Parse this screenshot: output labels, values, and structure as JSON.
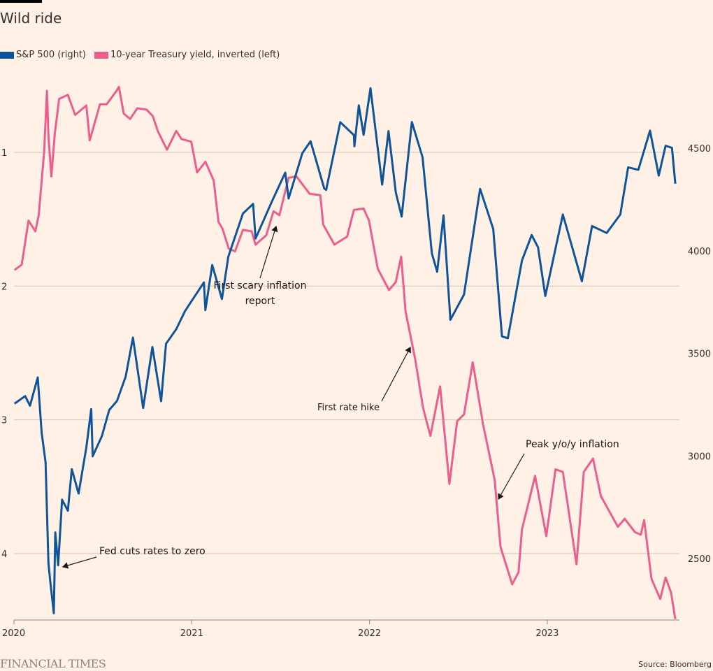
{
  "chart_data": {
    "type": "line",
    "title": "Wild ride",
    "legend_position": "top-left",
    "xlim": [
      "2020-01-01",
      "2023-10-15"
    ],
    "x_ticks": [
      "2020",
      "2021",
      "2022",
      "2023"
    ],
    "left_axis": {
      "label": "10-year Treasury yield, inverted",
      "inverted": true,
      "ylim": [
        0.38,
        4.5
      ],
      "ticks": [
        "1",
        "2",
        "3",
        "4"
      ],
      "grid": true
    },
    "right_axis": {
      "label": "S&P 500",
      "ylim": [
        2200,
        4880
      ],
      "ticks": [
        "4500",
        "4000",
        "3500",
        "3000",
        "2500"
      ]
    },
    "series": [
      {
        "name": "S&P 500 (right)",
        "axis": "right",
        "color": "#0f5499",
        "points": [
          [
            "2020-01-02",
            3258
          ],
          [
            "2020-01-24",
            3295
          ],
          [
            "2020-02-03",
            3248
          ],
          [
            "2020-02-19",
            3386
          ],
          [
            "2020-02-27",
            3116
          ],
          [
            "2020-03-06",
            2972
          ],
          [
            "2020-03-12",
            2480
          ],
          [
            "2020-03-16",
            2386
          ],
          [
            "2020-03-23",
            2237
          ],
          [
            "2020-03-26",
            2630
          ],
          [
            "2020-04-01",
            2470
          ],
          [
            "2020-04-09",
            2790
          ],
          [
            "2020-04-21",
            2736
          ],
          [
            "2020-04-29",
            2939
          ],
          [
            "2020-05-13",
            2820
          ],
          [
            "2020-05-29",
            3044
          ],
          [
            "2020-06-08",
            3232
          ],
          [
            "2020-06-11",
            3002
          ],
          [
            "2020-06-30",
            3100
          ],
          [
            "2020-07-15",
            3227
          ],
          [
            "2020-07-31",
            3271
          ],
          [
            "2020-08-18",
            3390
          ],
          [
            "2020-09-02",
            3580
          ],
          [
            "2020-09-23",
            3237
          ],
          [
            "2020-10-12",
            3534
          ],
          [
            "2020-10-30",
            3270
          ],
          [
            "2020-11-09",
            3550
          ],
          [
            "2020-11-30",
            3621
          ],
          [
            "2020-12-18",
            3709
          ],
          [
            "2020-12-31",
            3756
          ],
          [
            "2021-01-26",
            3849
          ],
          [
            "2021-01-29",
            3714
          ],
          [
            "2021-02-12",
            3934
          ],
          [
            "2021-03-04",
            3768
          ],
          [
            "2021-03-17",
            3974
          ],
          [
            "2021-04-16",
            4185
          ],
          [
            "2021-05-07",
            4232
          ],
          [
            "2021-05-12",
            4063
          ],
          [
            "2021-06-15",
            4246
          ],
          [
            "2021-07-12",
            4384
          ],
          [
            "2021-07-19",
            4258
          ],
          [
            "2021-08-16",
            4479
          ],
          [
            "2021-09-02",
            4537
          ],
          [
            "2021-09-30",
            4307
          ],
          [
            "2021-10-04",
            4300
          ],
          [
            "2021-11-02",
            4630
          ],
          [
            "2021-11-30",
            4567
          ],
          [
            "2021-12-01",
            4513
          ],
          [
            "2021-12-10",
            4712
          ],
          [
            "2021-12-20",
            4568
          ],
          [
            "2022-01-03",
            4796
          ],
          [
            "2022-01-27",
            4326
          ],
          [
            "2022-02-09",
            4587
          ],
          [
            "2022-02-24",
            4288
          ],
          [
            "2022-03-08",
            4170
          ],
          [
            "2022-03-29",
            4631
          ],
          [
            "2022-04-20",
            4459
          ],
          [
            "2022-05-09",
            3991
          ],
          [
            "2022-05-20",
            3901
          ],
          [
            "2022-06-02",
            4176
          ],
          [
            "2022-06-16",
            3667
          ],
          [
            "2022-07-14",
            3790
          ],
          [
            "2022-08-16",
            4305
          ],
          [
            "2022-09-12",
            4110
          ],
          [
            "2022-09-30",
            3586
          ],
          [
            "2022-10-12",
            3577
          ],
          [
            "2022-11-10",
            3956
          ],
          [
            "2022-11-30",
            4080
          ],
          [
            "2022-12-13",
            4020
          ],
          [
            "2022-12-28",
            3783
          ],
          [
            "2023-02-02",
            4180
          ],
          [
            "2023-03-13",
            3855
          ],
          [
            "2023-04-03",
            4124
          ],
          [
            "2023-05-03",
            4090
          ],
          [
            "2023-05-31",
            4180
          ],
          [
            "2023-06-16",
            4410
          ],
          [
            "2023-07-07",
            4398
          ],
          [
            "2023-07-31",
            4589
          ],
          [
            "2023-08-18",
            4370
          ],
          [
            "2023-09-01",
            4515
          ],
          [
            "2023-09-14",
            4505
          ],
          [
            "2023-09-21",
            4330
          ]
        ]
      },
      {
        "name": "10-year Treasury yield, inverted (left)",
        "axis": "left",
        "color": "#eb5e8d",
        "points": [
          [
            "2020-01-02",
            1.88
          ],
          [
            "2020-01-17",
            1.84
          ],
          [
            "2020-01-31",
            1.51
          ],
          [
            "2020-02-14",
            1.59
          ],
          [
            "2020-02-21",
            1.47
          ],
          [
            "2020-03-03",
            1.0
          ],
          [
            "2020-03-09",
            0.54
          ],
          [
            "2020-03-12",
            0.88
          ],
          [
            "2020-03-18",
            1.18
          ],
          [
            "2020-03-25",
            0.86
          ],
          [
            "2020-04-03",
            0.6
          ],
          [
            "2020-04-21",
            0.57
          ],
          [
            "2020-05-06",
            0.72
          ],
          [
            "2020-05-29",
            0.65
          ],
          [
            "2020-06-05",
            0.91
          ],
          [
            "2020-06-26",
            0.64
          ],
          [
            "2020-07-10",
            0.64
          ],
          [
            "2020-07-30",
            0.54
          ],
          [
            "2020-08-04",
            0.51
          ],
          [
            "2020-08-14",
            0.71
          ],
          [
            "2020-08-27",
            0.75
          ],
          [
            "2020-09-11",
            0.67
          ],
          [
            "2020-09-30",
            0.68
          ],
          [
            "2020-10-13",
            0.73
          ],
          [
            "2020-10-23",
            0.84
          ],
          [
            "2020-11-11",
            0.98
          ],
          [
            "2020-11-30",
            0.84
          ],
          [
            "2020-12-11",
            0.9
          ],
          [
            "2020-12-31",
            0.92
          ],
          [
            "2021-01-12",
            1.15
          ],
          [
            "2021-01-29",
            1.07
          ],
          [
            "2021-02-15",
            1.21
          ],
          [
            "2021-02-25",
            1.52
          ],
          [
            "2021-03-05",
            1.57
          ],
          [
            "2021-03-18",
            1.72
          ],
          [
            "2021-03-31",
            1.74
          ],
          [
            "2021-04-16",
            1.58
          ],
          [
            "2021-05-04",
            1.59
          ],
          [
            "2021-05-12",
            1.69
          ],
          [
            "2021-06-03",
            1.62
          ],
          [
            "2021-06-18",
            1.44
          ],
          [
            "2021-06-30",
            1.47
          ],
          [
            "2021-07-19",
            1.19
          ],
          [
            "2021-08-04",
            1.18
          ],
          [
            "2021-08-31",
            1.31
          ],
          [
            "2021-09-22",
            1.32
          ],
          [
            "2021-09-28",
            1.54
          ],
          [
            "2021-10-21",
            1.69
          ],
          [
            "2021-11-16",
            1.63
          ],
          [
            "2021-11-30",
            1.43
          ],
          [
            "2021-12-20",
            1.42
          ],
          [
            "2021-12-31",
            1.51
          ],
          [
            "2022-01-18",
            1.87
          ],
          [
            "2022-02-10",
            2.03
          ],
          [
            "2022-02-24",
            1.97
          ],
          [
            "2022-03-07",
            1.78
          ],
          [
            "2022-03-16",
            2.19
          ],
          [
            "2022-04-05",
            2.55
          ],
          [
            "2022-04-21",
            2.91
          ],
          [
            "2022-05-06",
            3.12
          ],
          [
            "2022-05-26",
            2.75
          ],
          [
            "2022-06-14",
            3.48
          ],
          [
            "2022-06-30",
            3.01
          ],
          [
            "2022-07-14",
            2.96
          ],
          [
            "2022-08-01",
            2.57
          ],
          [
            "2022-08-22",
            3.03
          ],
          [
            "2022-09-15",
            3.45
          ],
          [
            "2022-09-27",
            3.95
          ],
          [
            "2022-10-21",
            4.23
          ],
          [
            "2022-11-03",
            4.14
          ],
          [
            "2022-11-10",
            3.82
          ],
          [
            "2022-12-07",
            3.42
          ],
          [
            "2022-12-30",
            3.87
          ],
          [
            "2023-01-18",
            3.37
          ],
          [
            "2023-02-02",
            3.39
          ],
          [
            "2023-03-02",
            4.08
          ],
          [
            "2023-03-17",
            3.39
          ],
          [
            "2023-04-05",
            3.29
          ],
          [
            "2023-04-21",
            3.57
          ],
          [
            "2023-05-26",
            3.8
          ],
          [
            "2023-06-09",
            3.74
          ],
          [
            "2023-06-30",
            3.84
          ],
          [
            "2023-07-12",
            3.86
          ],
          [
            "2023-07-19",
            3.75
          ],
          [
            "2023-08-03",
            4.19
          ],
          [
            "2023-08-21",
            4.34
          ],
          [
            "2023-09-01",
            4.18
          ],
          [
            "2023-09-12",
            4.29
          ],
          [
            "2023-09-21",
            4.49
          ]
        ]
      }
    ],
    "annotations": [
      {
        "text": "Fed cuts rates to zero"
      },
      {
        "text": "First scary inflation report"
      },
      {
        "text": "First rate hike"
      },
      {
        "text": "Peak y/o/y inflation"
      }
    ]
  },
  "legend": {
    "sp500": "S&P 500 (right)",
    "yield": "10-year Treasury yield, inverted (left)"
  },
  "annotations": {
    "fed": "Fed cuts rates to zero",
    "scary_1": "First scary inflation",
    "scary_2": "report",
    "hike": "First rate hike",
    "peak": "Peak y/o/y inflation"
  },
  "footer": {
    "brand": "FINANCIAL TIMES",
    "source": "Source: Bloomberg"
  },
  "colors": {
    "background": "#fff1e5",
    "sp500": "#0f5499",
    "yield": "#eb5e8d",
    "grid": "#cfc5bb"
  }
}
